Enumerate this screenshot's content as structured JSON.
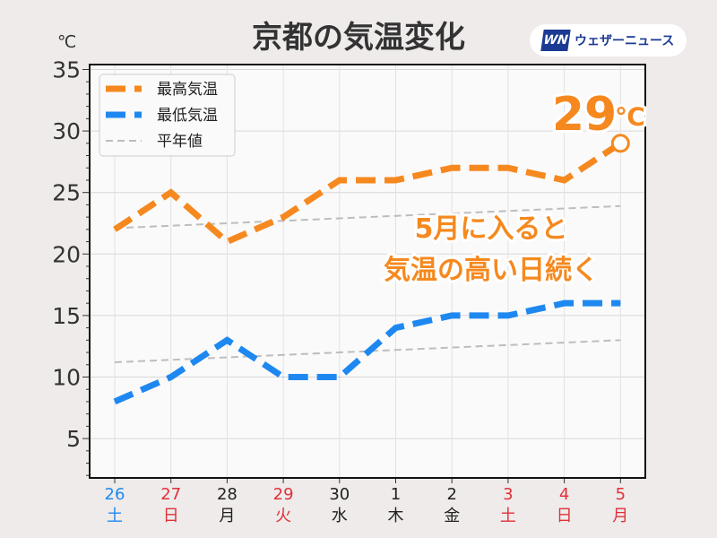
{
  "title": "京都の気温変化",
  "logo": {
    "mark": "WN",
    "text": "ウェザーニュース"
  },
  "unit": "℃",
  "colors": {
    "high": "#f5891f",
    "low": "#1e88f0",
    "normal": "#bdbdbd",
    "saturday": "#1e88f0",
    "holiday": "#e0303a",
    "weekday": "#222222"
  },
  "chart_data": {
    "type": "line",
    "title": "京都の気温変化",
    "ylabel": "℃",
    "ylim": [
      1.8,
      35.4
    ],
    "yticks": [
      5,
      10,
      15,
      20,
      25,
      30,
      35
    ],
    "categories": [
      "26",
      "27",
      "28",
      "29",
      "30",
      "1",
      "2",
      "3",
      "4",
      "5"
    ],
    "weekdays": [
      "土",
      "日",
      "月",
      "火",
      "水",
      "木",
      "金",
      "土",
      "日",
      "月"
    ],
    "daytype": [
      "sat",
      "hol",
      "wk",
      "hol",
      "wk",
      "wk",
      "wk",
      "hol",
      "hol",
      "hol"
    ],
    "series": [
      {
        "name": "最高気温",
        "values": [
          22,
          25,
          21,
          23,
          26,
          26,
          27,
          27,
          26,
          29
        ]
      },
      {
        "name": "最低気温",
        "values": [
          8,
          10,
          13,
          10,
          10,
          14,
          15,
          15,
          16,
          16
        ]
      },
      {
        "name": "平年値",
        "values": [
          22.1,
          22.3,
          22.5,
          22.7,
          22.9,
          23.1,
          23.3,
          23.5,
          23.7,
          23.9
        ]
      },
      {
        "name": "平年値",
        "values": [
          11.2,
          11.4,
          11.6,
          11.8,
          12.0,
          12.2,
          12.4,
          12.6,
          12.8,
          13.0
        ]
      }
    ],
    "legend": "top-left",
    "grid": true,
    "annotations": {
      "last_value": "29",
      "last_unit": "℃",
      "line1": "5月に入ると",
      "line2": "気温の高い日続く"
    }
  }
}
